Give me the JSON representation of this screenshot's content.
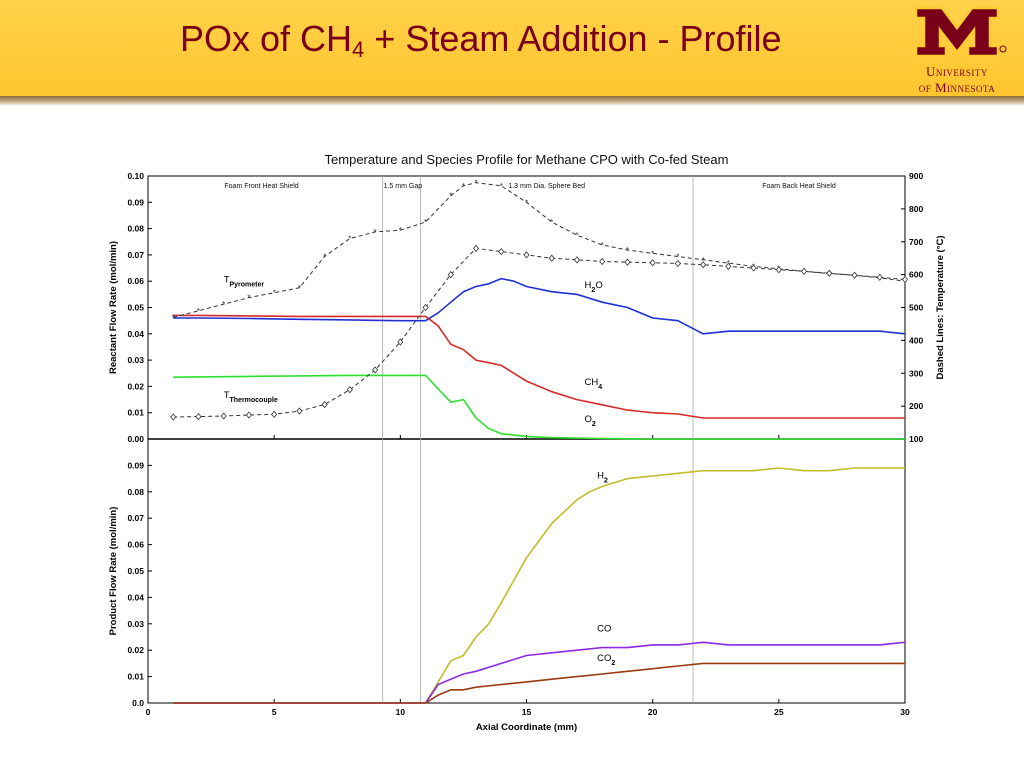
{
  "slide": {
    "title_main": "POx of CH",
    "title_sub": "4",
    "title_rest": " + Steam Addition - Profile",
    "logo_line1": "University",
    "logo_line2": "of Minnesota"
  },
  "colors": {
    "maroon": "#7a0019",
    "gold": "#ffcc33",
    "h2o": "#1f2fd6",
    "ch4": "#d42a2a",
    "o2": "#2ee02e",
    "h2": "#c2bd2a",
    "co": "#8a2be2",
    "co2": "#9a3a10",
    "temp": "#333333"
  },
  "chart_data": [
    {
      "type": "line",
      "title": "Temperature and Species Profile for Methane CPO with Co-fed Steam",
      "xlabel": "Axial Coordinate (mm)",
      "ylabel": "Reactant Flow Rate (mol/min)",
      "y2label": "Dashed Lines: Temperature (°C)",
      "xlim": [
        0,
        30
      ],
      "ylim": [
        0,
        0.1
      ],
      "y2lim": [
        100,
        900
      ],
      "xticks": [
        "0",
        "5",
        "10",
        "15",
        "20",
        "25",
        "30"
      ],
      "yticks": [
        "0.00",
        "0.01",
        "0.02",
        "0.03",
        "0.04",
        "0.05",
        "0.06",
        "0.07",
        "0.08",
        "0.09",
        "0.10"
      ],
      "y2ticks": [
        "100",
        "200",
        "300",
        "400",
        "500",
        "600",
        "700",
        "800",
        "900"
      ],
      "vlines": [
        9.3,
        10.8,
        21.6
      ],
      "region_labels": [
        {
          "x": 4.5,
          "text": "Foam Front Heat Shield"
        },
        {
          "x": 10.1,
          "text": "1.5 mm Gap"
        },
        {
          "x": 15.8,
          "text": "1.3 mm  Dia. Sphere Bed"
        },
        {
          "x": 25.8,
          "text": "Foam Back Heat Shield"
        }
      ],
      "series": [
        {
          "name": "H2O",
          "axis": "left",
          "x": [
            1,
            2,
            4,
            6,
            8,
            10,
            11,
            11.5,
            12,
            12.5,
            13,
            13.5,
            14,
            14.5,
            15,
            16,
            17,
            18,
            19,
            20,
            21,
            22,
            23,
            24,
            25,
            26,
            27,
            28,
            29,
            30
          ],
          "y": [
            0.046,
            0.046,
            0.0458,
            0.0455,
            0.0453,
            0.045,
            0.045,
            0.048,
            0.052,
            0.056,
            0.058,
            0.059,
            0.061,
            0.06,
            0.058,
            0.056,
            0.055,
            0.052,
            0.05,
            0.046,
            0.045,
            0.04,
            0.041,
            0.041,
            0.041,
            0.041,
            0.041,
            0.041,
            0.041,
            0.04
          ]
        },
        {
          "name": "CH4",
          "axis": "left",
          "x": [
            1,
            2,
            4,
            6,
            8,
            10,
            11,
            11.5,
            12,
            12.5,
            13,
            13.5,
            14,
            14.5,
            15,
            16,
            17,
            18,
            19,
            20,
            21,
            22,
            23,
            24,
            25,
            26,
            27,
            28,
            29,
            30
          ],
          "y": [
            0.047,
            0.047,
            0.0468,
            0.0466,
            0.0466,
            0.0466,
            0.0466,
            0.043,
            0.036,
            0.034,
            0.03,
            0.029,
            0.028,
            0.025,
            0.022,
            0.018,
            0.015,
            0.013,
            0.011,
            0.01,
            0.0095,
            0.008,
            0.008,
            0.008,
            0.008,
            0.008,
            0.008,
            0.008,
            0.008,
            0.008
          ]
        },
        {
          "name": "O2",
          "axis": "left",
          "x": [
            1,
            2,
            4,
            6,
            8,
            10,
            11,
            11.5,
            12,
            12.5,
            13,
            13.5,
            14,
            15,
            16,
            18,
            20,
            22,
            25,
            30
          ],
          "y": [
            0.0235,
            0.0236,
            0.0238,
            0.024,
            0.0242,
            0.0242,
            0.0242,
            0.019,
            0.014,
            0.015,
            0.008,
            0.004,
            0.002,
            0.001,
            0.0005,
            0.0002,
            0,
            0,
            0,
            0
          ]
        },
        {
          "name": "TPyrometer",
          "axis": "right",
          "dashed": true,
          "x": [
            1,
            2,
            3,
            4,
            5,
            6,
            7,
            8,
            9,
            10,
            11,
            12,
            12.5,
            13,
            14,
            15,
            16,
            17,
            18,
            19,
            20,
            21,
            22,
            23,
            24,
            25,
            26,
            27,
            28,
            29,
            30
          ],
          "y": [
            470,
            490,
            510,
            530,
            545,
            560,
            655,
            710,
            730,
            735,
            760,
            840,
            870,
            880,
            870,
            820,
            760,
            720,
            690,
            675,
            665,
            655,
            645,
            635,
            625,
            618,
            610,
            603,
            598,
            590,
            580
          ]
        },
        {
          "name": "TThermocouple",
          "axis": "right",
          "dashed": true,
          "x": [
            1,
            2,
            3,
            4,
            5,
            6,
            7,
            8,
            9,
            10,
            11,
            12,
            13,
            14,
            15,
            16,
            17,
            18,
            19,
            20,
            21,
            22,
            23,
            24,
            25,
            26,
            27,
            28,
            29,
            30
          ],
          "y": [
            167,
            168,
            170,
            173,
            175,
            185,
            205,
            250,
            310,
            395,
            500,
            600,
            680,
            670,
            660,
            650,
            645,
            640,
            638,
            636,
            634,
            630,
            625,
            620,
            615,
            610,
            604,
            598,
            592,
            585
          ]
        }
      ],
      "annotations": [
        {
          "text": "T",
          "sub": "Pyrometer",
          "x": 3.0,
          "y": 0.0595
        },
        {
          "text": "T",
          "sub": "Thermocouple",
          "x": 3.0,
          "y": 0.0155
        },
        {
          "text": "H",
          "sub": "2",
          "after": "O",
          "x": 17.3,
          "y": 0.0575
        },
        {
          "text": "CH",
          "sub": "4",
          "x": 17.3,
          "y": 0.0205
        },
        {
          "text": "O",
          "sub": "2",
          "x": 17.3,
          "y": 0.0065
        }
      ]
    },
    {
      "type": "line",
      "xlabel": "Axial Coordinate (mm)",
      "ylabel": "Product Flow Rate (mol/min)",
      "xlim": [
        0,
        30
      ],
      "ylim": [
        0,
        0.1
      ],
      "yticks": [
        "0.0",
        "0.01",
        "0.02",
        "0.03",
        "0.04",
        "0.05",
        "0.06",
        "0.07",
        "0.08",
        "0.09"
      ],
      "series": [
        {
          "name": "H2",
          "x": [
            1,
            3,
            5,
            7,
            9,
            10,
            11,
            11.5,
            12,
            12.5,
            13,
            13.5,
            14,
            15,
            16,
            17,
            17.5,
            18,
            19,
            20,
            21,
            22,
            23,
            24,
            25,
            26,
            27,
            28,
            29,
            30
          ],
          "y": [
            0,
            0,
            0,
            0,
            0,
            0,
            0,
            0.008,
            0.016,
            0.018,
            0.025,
            0.03,
            0.038,
            0.055,
            0.068,
            0.077,
            0.08,
            0.082,
            0.085,
            0.086,
            0.087,
            0.088,
            0.088,
            0.088,
            0.089,
            0.088,
            0.088,
            0.089,
            0.089,
            0.089
          ]
        },
        {
          "name": "CO",
          "x": [
            1,
            5,
            10,
            11,
            11.5,
            12,
            12.5,
            13,
            14,
            15,
            16,
            17,
            18,
            19,
            20,
            21,
            22,
            23,
            24,
            25,
            26,
            27,
            28,
            29,
            30
          ],
          "y": [
            0,
            0,
            0,
            0,
            0.007,
            0.009,
            0.011,
            0.012,
            0.015,
            0.018,
            0.019,
            0.02,
            0.021,
            0.021,
            0.022,
            0.022,
            0.023,
            0.022,
            0.022,
            0.022,
            0.022,
            0.022,
            0.022,
            0.022,
            0.023
          ]
        },
        {
          "name": "CO2",
          "x": [
            1,
            5,
            10,
            11,
            11.5,
            12,
            12.5,
            13,
            14,
            15,
            16,
            17,
            18,
            19,
            20,
            21,
            22,
            23,
            24,
            25,
            26,
            27,
            28,
            29,
            30
          ],
          "y": [
            0,
            0,
            0,
            0,
            0.003,
            0.005,
            0.005,
            0.006,
            0.007,
            0.008,
            0.009,
            0.01,
            0.011,
            0.012,
            0.013,
            0.014,
            0.015,
            0.015,
            0.015,
            0.015,
            0.015,
            0.015,
            0.015,
            0.015,
            0.015
          ]
        }
      ],
      "annotations": [
        {
          "text": "H",
          "sub": "2",
          "x": 17.8,
          "y": 0.085
        },
        {
          "text": "CO",
          "sub": "",
          "x": 17.8,
          "y": 0.027
        },
        {
          "text": "CO",
          "sub": "2",
          "x": 17.8,
          "y": 0.016
        }
      ]
    }
  ]
}
